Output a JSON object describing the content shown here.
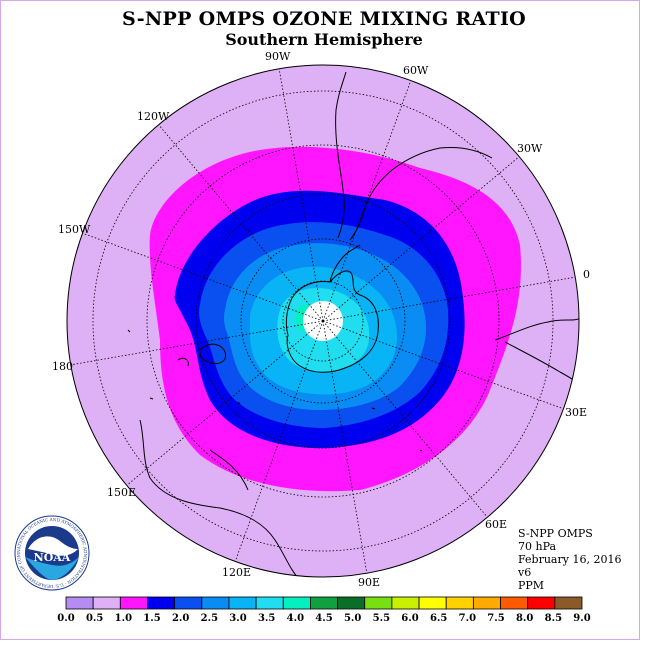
{
  "title": "S-NPP OMPS OZONE MIXING RATIO",
  "subtitle": "Southern Hemisphere",
  "longitude_labels": [
    "90W",
    "60W",
    "30W",
    "0",
    "30E",
    "60E",
    "90E",
    "120E",
    "150E",
    "180",
    "150W",
    "120W"
  ],
  "info": {
    "instrument": "S-NPP OMPS",
    "level": "70 hPa",
    "date": "February 16, 2016",
    "version": "v6",
    "units": "PPM"
  },
  "logo": {
    "text": "NOAA",
    "ring_text": "NATIONAL OCEANIC AND ATMOSPHERIC ADMINISTRATION · U.S. DEPARTMENT OF COMMERCE"
  },
  "colorbar": {
    "ticks": [
      "0.0",
      "0.5",
      "1.0",
      "1.5",
      "2.0",
      "2.5",
      "3.0",
      "3.5",
      "4.0",
      "4.5",
      "5.0",
      "5.5",
      "6.0",
      "6.5",
      "7.0",
      "7.5",
      "8.0",
      "8.5",
      "9.0"
    ],
    "colors": [
      "#b58cf0",
      "#deb0f5",
      "#ff16ff",
      "#0000f0",
      "#0a4ff0",
      "#0a8cf5",
      "#08b4f5",
      "#20def0",
      "#05f0c0",
      "#10a040",
      "#0a6e28",
      "#78e010",
      "#c8f000",
      "#ffff00",
      "#ffd200",
      "#ffaa00",
      "#ff5a00",
      "#ff0000",
      "#8c5a28"
    ]
  }
}
